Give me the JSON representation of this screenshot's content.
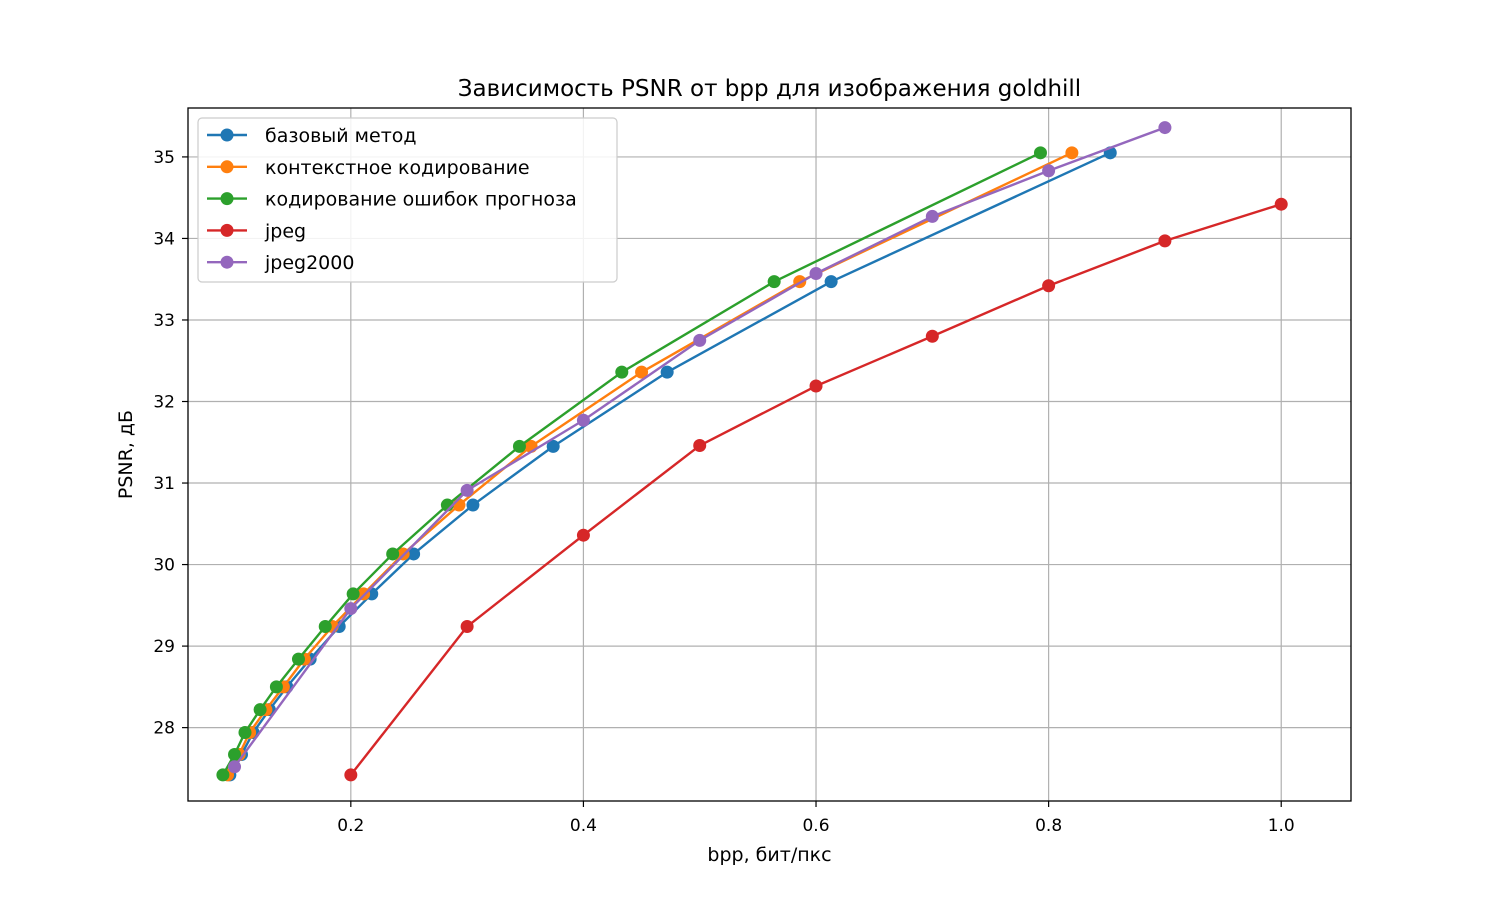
{
  "chart_data": {
    "type": "line",
    "title": "Зависимость PSNR от bpp для изображения goldhill",
    "xlabel": "bpp, бит/пкс",
    "ylabel": "PSNR, дБ",
    "xlim": [
      0.06,
      1.06
    ],
    "ylim": [
      27.1,
      35.6
    ],
    "xticks": [
      0.2,
      0.4,
      0.6,
      0.8,
      1.0
    ],
    "xtick_labels": [
      "0.2",
      "0.4",
      "0.6",
      "0.8",
      "1.0"
    ],
    "yticks": [
      28,
      29,
      30,
      31,
      32,
      33,
      34,
      35
    ],
    "ytick_labels": [
      "28",
      "29",
      "30",
      "31",
      "32",
      "33",
      "34",
      "35"
    ],
    "grid": true,
    "legend_position": "upper-left",
    "series": [
      {
        "name": "базовый метод",
        "color": "#1f77b4",
        "x": [
          0.096,
          0.106,
          0.116,
          0.13,
          0.145,
          0.165,
          0.19,
          0.218,
          0.254,
          0.305,
          0.374,
          0.472,
          0.613,
          0.853
        ],
        "y": [
          27.42,
          27.67,
          27.94,
          28.22,
          28.5,
          28.84,
          29.24,
          29.64,
          30.13,
          30.73,
          31.45,
          32.36,
          33.47,
          35.05
        ]
      },
      {
        "name": "контекстное кодирование",
        "color": "#ff7f0e",
        "x": [
          0.094,
          0.104,
          0.113,
          0.127,
          0.142,
          0.16,
          0.184,
          0.211,
          0.245,
          0.293,
          0.355,
          0.45,
          0.586,
          0.82
        ],
        "y": [
          27.42,
          27.67,
          27.94,
          28.22,
          28.5,
          28.84,
          29.24,
          29.64,
          30.13,
          30.73,
          31.45,
          32.36,
          33.47,
          35.05
        ]
      },
      {
        "name": "кодирование ошибок прогноза",
        "color": "#2ca02c",
        "x": [
          0.09,
          0.1,
          0.109,
          0.122,
          0.136,
          0.155,
          0.178,
          0.202,
          0.236,
          0.283,
          0.345,
          0.433,
          0.564,
          0.793
        ],
        "y": [
          27.42,
          27.67,
          27.94,
          28.22,
          28.5,
          28.84,
          29.24,
          29.64,
          30.13,
          30.73,
          31.45,
          32.36,
          33.47,
          35.05
        ]
      },
      {
        "name": "jpeg",
        "color": "#d62728",
        "x": [
          0.2,
          0.3,
          0.4,
          0.5,
          0.6,
          0.7,
          0.8,
          0.9,
          1.0
        ],
        "y": [
          27.42,
          29.24,
          30.36,
          31.46,
          32.19,
          32.8,
          33.42,
          33.97,
          34.42
        ]
      },
      {
        "name": "jpeg2000",
        "color": "#9467bd",
        "x": [
          0.1,
          0.2,
          0.3,
          0.4,
          0.5,
          0.6,
          0.7,
          0.8,
          0.9
        ],
        "y": [
          27.52,
          29.46,
          30.91,
          31.77,
          32.75,
          33.57,
          34.27,
          34.83,
          35.36
        ]
      }
    ]
  }
}
